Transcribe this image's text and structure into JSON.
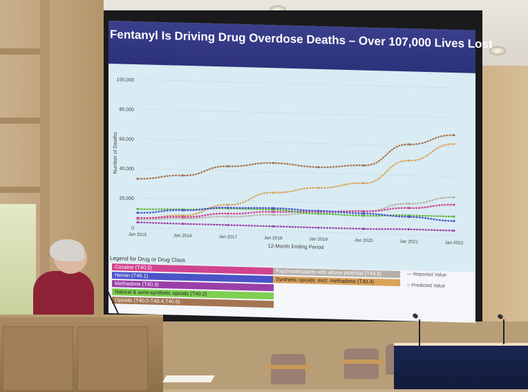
{
  "slide": {
    "title": "Fentanyl Is Driving Drug Overdose Deaths – Over 107,000 Lives Lost",
    "y_axis_label": "Number of Deaths",
    "x_axis_label": "12-Month Ending Period",
    "y_ticks": [
      "100,000",
      "80,000",
      "60,000",
      "40,000",
      "20,000",
      "0"
    ],
    "x_ticks": [
      "Jan 2015",
      "Jan 2016",
      "Jan 2017",
      "Jan 2018",
      "Jan 2019",
      "Jan 2020",
      "Jan 2021",
      "Jan 2022"
    ],
    "legend_title": "Legend for Drug or Drug Class",
    "legend_left": [
      {
        "label": "Cocaine (T40.5)",
        "color": "#d0448f"
      },
      {
        "label": "Heroin (T40.1)",
        "color": "#4a54c8"
      },
      {
        "label": "Methadone (T40.3)",
        "color": "#9a3fa8"
      },
      {
        "label": "Natural & semi-synthetic opioids (T40.2)",
        "color": "#5fb33b"
      },
      {
        "label": "Opioids (T40.0-T40.4,T40.6)",
        "color": "#a47552"
      }
    ],
    "legend_right": [
      {
        "label": "Psychostimulants with abuse potential (T43.6)",
        "color": "#b5b0aa"
      },
      {
        "label": "Synthetic opioids, excl. methadone (T40.4)",
        "color": "#d9a35a"
      }
    ],
    "key_reported": "Reported Value",
    "key_predicted": "Predicted Value"
  },
  "chart_data": {
    "type": "line",
    "title": "Fentanyl Is Driving Drug Overdose Deaths – Over 107,000 Lives Lost",
    "xlabel": "12-Month Ending Period",
    "ylabel": "Number of Deaths",
    "ylim": [
      0,
      100000
    ],
    "x": [
      "Jan 2015",
      "Jan 2016",
      "Jan 2017",
      "Jan 2018",
      "Jan 2019",
      "Jan 2020",
      "Jan 2021",
      "Jan 2022"
    ],
    "series": [
      {
        "name": "Opioids (T40.0-T40.4,T40.6)",
        "color": "#a47552",
        "values": [
          33000,
          36000,
          43000,
          46000,
          44000,
          46000,
          61000,
          68000
        ]
      },
      {
        "name": "Synthetic opioids, excl. methadone (T40.4)",
        "color": "#d9a35a",
        "values": [
          6000,
          9000,
          17000,
          26000,
          30000,
          34000,
          50000,
          62000
        ]
      },
      {
        "name": "Psychostimulants with abuse potential (T43.6)",
        "color": "#b5b0aa",
        "values": [
          5500,
          7000,
          9000,
          11000,
          13000,
          15000,
          21000,
          26000
        ]
      },
      {
        "name": "Cocaine (T40.5)",
        "color": "#d0448f",
        "values": [
          6500,
          8000,
          11000,
          13000,
          14000,
          15000,
          18000,
          21000
        ]
      },
      {
        "name": "Natural & semi-synthetic opioids (T40.2)",
        "color": "#5fb33b",
        "values": [
          12500,
          13000,
          14500,
          14500,
          12500,
          12000,
          13000,
          13000
        ]
      },
      {
        "name": "Heroin (T40.1)",
        "color": "#4a54c8",
        "values": [
          10000,
          12500,
          15000,
          15500,
          14500,
          13500,
          12000,
          10000
        ]
      },
      {
        "name": "Methadone (T40.3)",
        "color": "#9a3fa8",
        "values": [
          3500,
          3300,
          3300,
          3200,
          3100,
          3100,
          3600,
          3500
        ]
      }
    ],
    "legend": "bottom"
  }
}
